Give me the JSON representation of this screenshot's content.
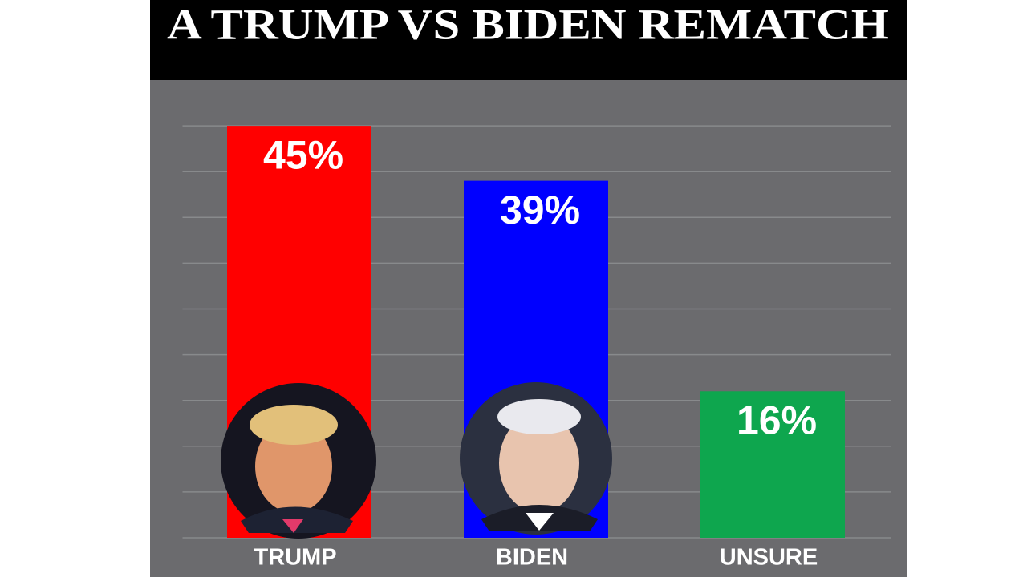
{
  "chart_data": {
    "type": "bar",
    "title": "A  TRUMP VS BIDEN REMATCH",
    "categories": [
      "TRUMP",
      "BIDEN",
      "UNSURE"
    ],
    "values": [
      45,
      39,
      16
    ],
    "value_labels": [
      "45%",
      "39%",
      "16%"
    ],
    "colors": [
      "#ff0000",
      "#0000ff",
      "#0ea64e"
    ],
    "ylim": [
      0,
      50
    ],
    "yticks": [
      0,
      5,
      10,
      15,
      20,
      25,
      30,
      35,
      40,
      45
    ],
    "grid": true
  }
}
